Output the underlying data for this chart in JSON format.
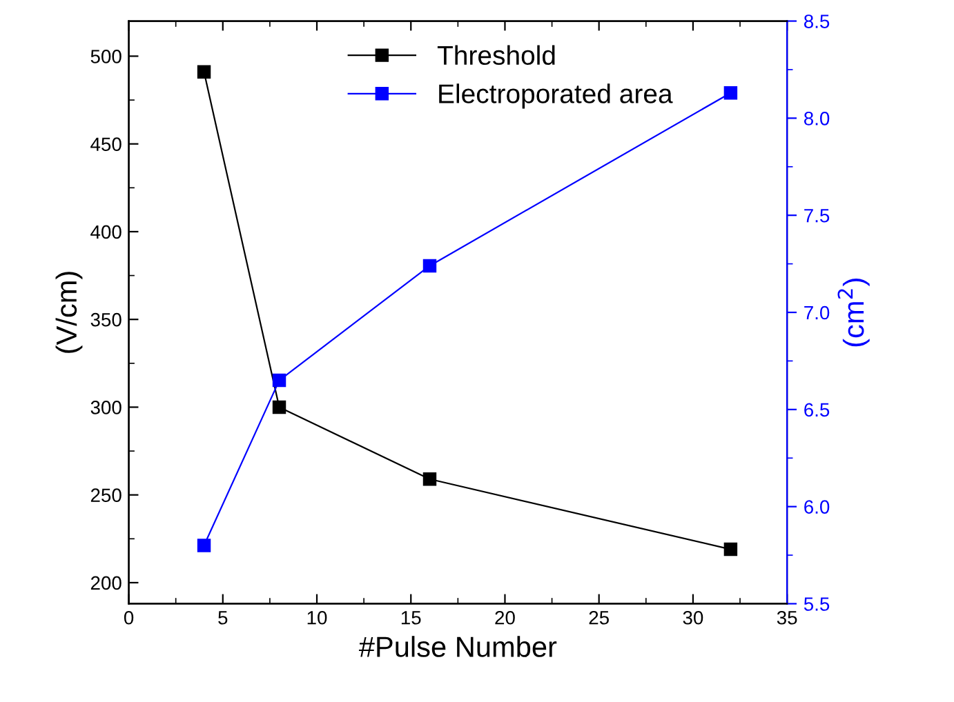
{
  "chart_data": {
    "type": "line",
    "xlabel": "#Pulse Number",
    "ylabel": "(V/cm)",
    "y2label": "(cm$^{2}$)",
    "x": [
      4,
      8,
      16,
      32
    ],
    "series": [
      {
        "name": "Threshold",
        "color": "#000000",
        "values": [
          491,
          300,
          259,
          219
        ]
      },
      {
        "name": "Electroporated area",
        "color": "#0000ff",
        "axis": "y2",
        "values": [
          5.8,
          6.65,
          7.24,
          8.13
        ]
      }
    ],
    "xlim": [
      0,
      35
    ],
    "xticks": [
      0,
      5,
      10,
      15,
      20,
      25,
      30,
      35
    ],
    "ylim": [
      188,
      520
    ],
    "yticks": [
      200,
      250,
      300,
      350,
      400,
      450,
      500
    ],
    "y2lim": [
      5.5,
      8.5
    ],
    "y2ticks": [
      {
        "value": 5.5,
        "label": "5.5"
      },
      {
        "value": 6.0,
        "label": "6.0"
      },
      {
        "value": 6.5,
        "label": "6.5"
      },
      {
        "value": 7.0,
        "label": "7.0"
      },
      {
        "value": 7.5,
        "label": "7.5"
      },
      {
        "value": 8.0,
        "label": "8.0"
      },
      {
        "value": 8.5,
        "label": "8.5"
      }
    ],
    "marker": "square",
    "line_style": "solid",
    "legend": "top",
    "grid": false
  }
}
